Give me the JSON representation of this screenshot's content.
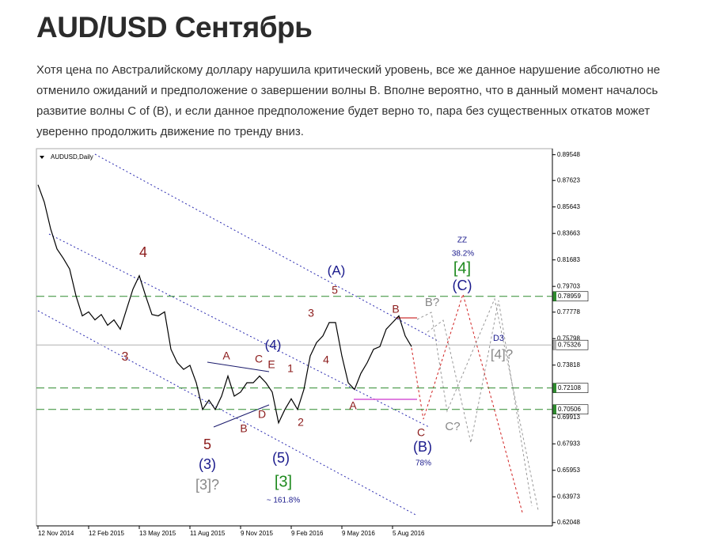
{
  "title": "AUD/USD Сентябрь",
  "paragraph": "Хотя цена по Австралийскому доллару нарушила критический уровень, все же данное нарушение абсолютно не отменило ожиданий и предположение о завершении волны B. Вполне вероятно, что в данный момент началось развитие волны C of (B), и если данное предположение будет верно то, пара без существенных откатов может уверенно продолжить движение по тренду вниз.",
  "chart_data": {
    "type": "line",
    "title": "AUDUSD,Daily",
    "categories": [
      "12 Nov 2014",
      null,
      null,
      null,
      null,
      null,
      null,
      null,
      "12 Feb 2015",
      null,
      null,
      null,
      null,
      null,
      null,
      null,
      "13 May 2015",
      null,
      null,
      null,
      null,
      null,
      null,
      null,
      "11 Aug 2015",
      null,
      null,
      null,
      null,
      null,
      null,
      null,
      "9 Nov 2015",
      null,
      null,
      null,
      null,
      null,
      null,
      null,
      "9 Feb 2016",
      null,
      null,
      null,
      null,
      null,
      null,
      null,
      "9 May 2016",
      null,
      null,
      null,
      null,
      null,
      null,
      null,
      "5 Aug 2016",
      null,
      null,
      null
    ],
    "series": [
      {
        "name": "AUDUSD",
        "color": "#000000",
        "values": [
          0.873,
          0.86,
          0.84,
          0.825,
          0.818,
          0.81,
          0.79,
          0.775,
          0.778,
          0.772,
          0.776,
          0.768,
          0.772,
          0.765,
          0.78,
          0.795,
          0.805,
          0.79,
          0.776,
          0.775,
          0.778,
          0.75,
          0.74,
          0.735,
          0.738,
          0.725,
          0.705,
          0.712,
          0.705,
          0.715,
          0.73,
          0.715,
          0.718,
          0.725,
          0.725,
          0.73,
          0.725,
          0.718,
          0.695,
          0.705,
          0.713,
          0.705,
          0.72,
          0.745,
          0.755,
          0.76,
          0.77,
          0.77,
          0.745,
          0.725,
          0.72,
          0.732,
          0.74,
          0.75,
          0.752,
          0.765,
          0.77,
          0.775,
          0.76,
          0.752
        ]
      }
    ],
    "ylim": [
      0.618,
      0.9
    ],
    "yticks": [
      0.62048,
      0.63973,
      0.65953,
      0.67933,
      0.69913,
      0.73818,
      0.75798,
      0.77778,
      0.79703,
      0.81683,
      0.83663,
      0.85643,
      0.87623,
      0.89548
    ],
    "levels": [
      {
        "value": 0.78959,
        "color": "#2e8b2e"
      },
      {
        "value": 0.72108,
        "color": "#2e8b2e"
      },
      {
        "value": 0.70506,
        "color": "#2e8b2e"
      },
      {
        "value": 0.75326,
        "color": "#b0b0b0"
      }
    ],
    "annotations": [
      {
        "text": "4",
        "color": "#8b1a1a"
      },
      {
        "text": "3",
        "color": "#8b1a1a"
      },
      {
        "text": "5",
        "color": "#8b1a1a"
      },
      {
        "text": "(3)",
        "color": "#1a1a8c"
      },
      {
        "text": "[3]?",
        "color": "#888888"
      },
      {
        "text": "A",
        "color": "#8b1a1a"
      },
      {
        "text": "B",
        "color": "#8b1a1a"
      },
      {
        "text": "C",
        "color": "#8b1a1a"
      },
      {
        "text": "D",
        "color": "#8b1a1a"
      },
      {
        "text": "E",
        "color": "#8b1a1a"
      },
      {
        "text": "(4)",
        "color": "#1a1a8c"
      },
      {
        "text": "5",
        "color": "#8b1a1a"
      },
      {
        "text": "(5)",
        "color": "#1a1a8c"
      },
      {
        "text": "[3]",
        "color": "#1f8a1f"
      },
      {
        "text": "~ 161.8%",
        "color": "#1a1a8c"
      },
      {
        "text": "1",
        "color": "#8b1a1a"
      },
      {
        "text": "2",
        "color": "#8b1a1a"
      },
      {
        "text": "3",
        "color": "#8b1a1a"
      },
      {
        "text": "4",
        "color": "#8b1a1a"
      },
      {
        "text": "(A)",
        "color": "#1a1a8c"
      },
      {
        "text": "A",
        "color": "#8b1a1a"
      },
      {
        "text": "B",
        "color": "#8b1a1a"
      },
      {
        "text": "C",
        "color": "#8b1a1a"
      },
      {
        "text": "(B)",
        "color": "#1a1a8c"
      },
      {
        "text": "78%",
        "color": "#1a1a8c"
      },
      {
        "text": "B?",
        "color": "#888888"
      },
      {
        "text": "ZZ",
        "color": "#1a1a8c"
      },
      {
        "text": "38.2%",
        "color": "#1a1a8c"
      },
      {
        "text": "[4]",
        "color": "#1f8a1f"
      },
      {
        "text": "(C)",
        "color": "#1a1a8c"
      },
      {
        "text": "C?",
        "color": "#888888"
      },
      {
        "text": "D3",
        "color": "#1a1a8c"
      },
      {
        "text": "[4]?",
        "color": "#888888"
      }
    ]
  }
}
